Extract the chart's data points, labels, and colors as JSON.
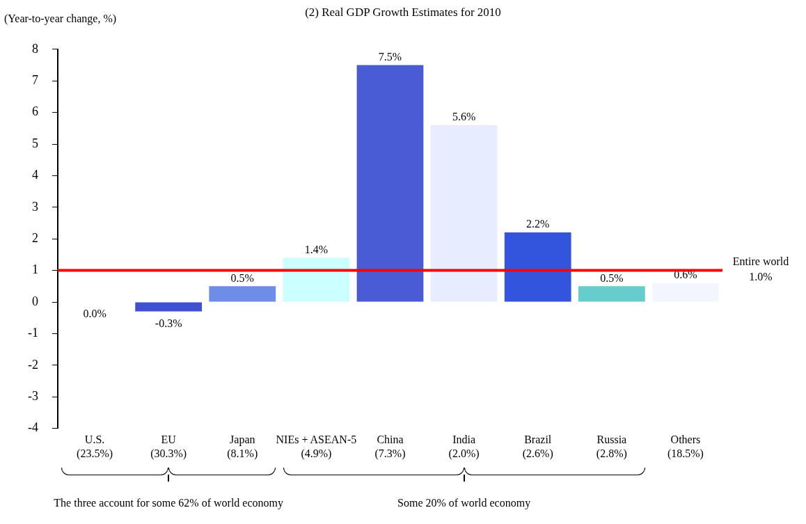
{
  "chart_data": {
    "type": "bar",
    "title": "(2) Real GDP Growth Estimates for 2010",
    "ylabel": "(Year-to-year change, %)",
    "categories": [
      "U.S. (23.5%)",
      "EU (30.3%)",
      "Japan (8.1%)",
      "NIEs + ASEAN-5 (4.9%)",
      "China (7.3%)",
      "India (2.0%)",
      "Brazil (2.6%)",
      "Russia (2.8%)",
      "Others (18.5%)"
    ],
    "values": [
      0.0,
      -0.3,
      0.5,
      1.4,
      7.5,
      5.6,
      2.2,
      0.5,
      0.6
    ],
    "colors": [
      "#1a237e",
      "#3f51d0",
      "#6d8de8",
      "#ccffff",
      "#4a5bd6",
      "#e8ecff",
      "#3355dd",
      "#66cccc",
      "#f3f5ff"
    ],
    "value_labels": [
      "0.0%",
      "-0.3%",
      "0.5%",
      "1.4%",
      "7.5%",
      "5.6%",
      "2.2%",
      "0.5%",
      "0.6%"
    ],
    "ylim": [
      -4,
      8
    ],
    "yticks": [
      -4,
      -3,
      -2,
      -1,
      0,
      1,
      2,
      3,
      4,
      5,
      6,
      7,
      8
    ],
    "ref_lines": [
      {
        "axis": "y",
        "value": 1.0,
        "label": "Entire world 1.0%",
        "color": "#ff0000"
      }
    ],
    "annotations": [
      "The three account for some 62% of world economy",
      "Some 20% of world economy"
    ],
    "grid": false,
    "legend": false
  }
}
